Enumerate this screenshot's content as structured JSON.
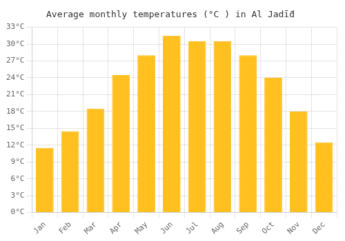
{
  "chart_data": {
    "type": "bar",
    "title": "Average monthly temperatures (°C ) in Al Jadī̄d",
    "categories": [
      "Jan",
      "Feb",
      "Mar",
      "Apr",
      "May",
      "Jun",
      "Jul",
      "Aug",
      "Sep",
      "Oct",
      "Nov",
      "Dec"
    ],
    "values": [
      11.5,
      14.5,
      18.5,
      24.5,
      28.0,
      31.5,
      30.5,
      30.5,
      28.0,
      24.0,
      18.0,
      12.5
    ],
    "color": "#FFC020",
    "ylim": [
      0,
      33
    ],
    "yticks": [
      {
        "value": 0,
        "label": "0°C"
      },
      {
        "value": 3,
        "label": "3°C"
      },
      {
        "value": 6,
        "label": "6°C"
      },
      {
        "value": 9,
        "label": "9°C"
      },
      {
        "value": 12,
        "label": "12°C"
      },
      {
        "value": 15,
        "label": "15°C"
      },
      {
        "value": 18,
        "label": "18°C"
      },
      {
        "value": 21,
        "label": "21°C"
      },
      {
        "value": 24,
        "label": "24°C"
      },
      {
        "value": 27,
        "label": "27°C"
      },
      {
        "value": 30,
        "label": "30°C"
      },
      {
        "value": 33,
        "label": "33°C"
      }
    ],
    "grid": true
  }
}
